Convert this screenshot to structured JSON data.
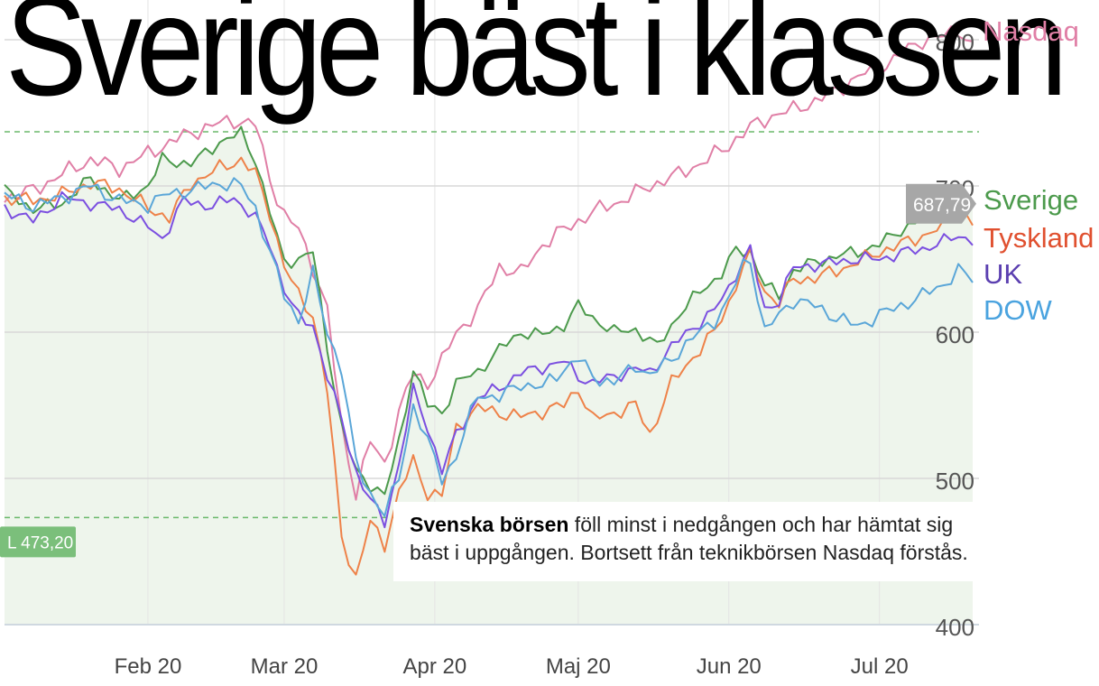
{
  "headline": "Sverige bäst i klassen",
  "caption": {
    "bold": "Svenska börsen",
    "text": " föll minst i nedgången och har hämtat sig bäst i uppgången. Bortsett från teknikbörsen Nasdaq förstås."
  },
  "chart_data": {
    "type": "line",
    "xlabel": "",
    "ylabel": "",
    "ylim": [
      400,
      830
    ],
    "y_ticks": [
      400,
      500,
      600,
      700,
      800
    ],
    "x_ticks": [
      {
        "label": "Feb 20",
        "at": 20
      },
      {
        "label": "Mar 20",
        "at": 39
      },
      {
        "label": "Apr 20",
        "at": 60
      },
      {
        "label": "Maj 20",
        "at": 80
      },
      {
        "label": "Jun 20",
        "at": 101
      },
      {
        "label": "Jul 20",
        "at": 122
      }
    ],
    "grid": true,
    "legend_placement": "right",
    "high_line": {
      "value": 737
    },
    "low_line": {
      "value": 473.2,
      "label": "L 473,20"
    },
    "last_value_label": "687,79",
    "last_value": 687.79,
    "series": [
      {
        "name": "Nasdaq",
        "color": "#e07fa6",
        "anchors": [
          [
            0,
            692
          ],
          [
            4,
            697
          ],
          [
            8,
            708
          ],
          [
            12,
            718
          ],
          [
            16,
            712
          ],
          [
            20,
            722
          ],
          [
            24,
            732
          ],
          [
            28,
            740
          ],
          [
            32,
            745
          ],
          [
            35,
            742
          ],
          [
            37,
            705
          ],
          [
            39,
            680
          ],
          [
            41,
            670
          ],
          [
            43,
            645
          ],
          [
            45,
            615
          ],
          [
            47,
            535
          ],
          [
            49,
            490
          ],
          [
            51,
            525
          ],
          [
            53,
            510
          ],
          [
            55,
            545
          ],
          [
            57,
            572
          ],
          [
            59,
            565
          ],
          [
            61,
            580
          ],
          [
            63,
            600
          ],
          [
            66,
            615
          ],
          [
            69,
            645
          ],
          [
            72,
            640
          ],
          [
            75,
            660
          ],
          [
            78,
            670
          ],
          [
            82,
            682
          ],
          [
            86,
            690
          ],
          [
            90,
            700
          ],
          [
            94,
            708
          ],
          [
            98,
            718
          ],
          [
            101,
            728
          ],
          [
            104,
            740
          ],
          [
            107,
            748
          ],
          [
            110,
            752
          ],
          [
            113,
            758
          ],
          [
            116,
            765
          ],
          [
            119,
            775
          ],
          [
            122,
            780
          ],
          [
            125,
            790
          ],
          [
            128,
            800
          ],
          [
            131,
            802
          ],
          [
            133,
            808
          ],
          [
            135,
            795
          ]
        ],
        "amp": 4.5
      },
      {
        "name": "Sverige",
        "color": "#4c9a4c",
        "anchors": [
          [
            0,
            697
          ],
          [
            4,
            684
          ],
          [
            8,
            688
          ],
          [
            12,
            705
          ],
          [
            16,
            690
          ],
          [
            20,
            700
          ],
          [
            22,
            718
          ],
          [
            26,
            715
          ],
          [
            30,
            730
          ],
          [
            33,
            736
          ],
          [
            35,
            718
          ],
          [
            37,
            682
          ],
          [
            39,
            648
          ],
          [
            41,
            650
          ],
          [
            43,
            655
          ],
          [
            45,
            590
          ],
          [
            47,
            535
          ],
          [
            49,
            505
          ],
          [
            51,
            496
          ],
          [
            53,
            488
          ],
          [
            55,
            525
          ],
          [
            57,
            575
          ],
          [
            59,
            550
          ],
          [
            61,
            545
          ],
          [
            63,
            565
          ],
          [
            66,
            573
          ],
          [
            69,
            588
          ],
          [
            72,
            600
          ],
          [
            75,
            598
          ],
          [
            78,
            605
          ],
          [
            80,
            618
          ],
          [
            82,
            610
          ],
          [
            85,
            600
          ],
          [
            88,
            602
          ],
          [
            91,
            590
          ],
          [
            94,
            612
          ],
          [
            97,
            628
          ],
          [
            100,
            640
          ],
          [
            102,
            656
          ],
          [
            104,
            655
          ],
          [
            106,
            632
          ],
          [
            108,
            625
          ],
          [
            110,
            642
          ],
          [
            113,
            648
          ],
          [
            116,
            652
          ],
          [
            119,
            655
          ],
          [
            122,
            660
          ],
          [
            125,
            670
          ],
          [
            128,
            678
          ],
          [
            131,
            684
          ],
          [
            133,
            693
          ],
          [
            135,
            688
          ]
        ],
        "amp": 3.5
      },
      {
        "name": "Tyskland",
        "color": "#ee8249",
        "anchors": [
          [
            0,
            692
          ],
          [
            4,
            690
          ],
          [
            8,
            694
          ],
          [
            12,
            702
          ],
          [
            16,
            698
          ],
          [
            20,
            685
          ],
          [
            23,
            678
          ],
          [
            26,
            702
          ],
          [
            30,
            712
          ],
          [
            33,
            718
          ],
          [
            35,
            708
          ],
          [
            37,
            682
          ],
          [
            39,
            645
          ],
          [
            41,
            625
          ],
          [
            43,
            612
          ],
          [
            45,
            560
          ],
          [
            47,
            460
          ],
          [
            49,
            432
          ],
          [
            51,
            470
          ],
          [
            53,
            455
          ],
          [
            55,
            490
          ],
          [
            57,
            512
          ],
          [
            59,
            490
          ],
          [
            61,
            488
          ],
          [
            63,
            535
          ],
          [
            66,
            548
          ],
          [
            69,
            545
          ],
          [
            72,
            542
          ],
          [
            75,
            546
          ],
          [
            78,
            550
          ],
          [
            80,
            562
          ],
          [
            82,
            540
          ],
          [
            85,
            545
          ],
          [
            88,
            550
          ],
          [
            90,
            530
          ],
          [
            93,
            565
          ],
          [
            96,
            583
          ],
          [
            99,
            600
          ],
          [
            101,
            620
          ],
          [
            103,
            645
          ],
          [
            104,
            652
          ],
          [
            106,
            628
          ],
          [
            108,
            620
          ],
          [
            110,
            636
          ],
          [
            113,
            637
          ],
          [
            116,
            642
          ],
          [
            119,
            648
          ],
          [
            122,
            655
          ],
          [
            125,
            660
          ],
          [
            128,
            666
          ],
          [
            131,
            672
          ],
          [
            133,
            684
          ],
          [
            135,
            675
          ]
        ],
        "amp": 4
      },
      {
        "name": "UK",
        "color": "#7b4fe0",
        "anchors": [
          [
            0,
            685
          ],
          [
            4,
            676
          ],
          [
            8,
            692
          ],
          [
            12,
            688
          ],
          [
            16,
            684
          ],
          [
            20,
            672
          ],
          [
            22,
            664
          ],
          [
            25,
            690
          ],
          [
            29,
            686
          ],
          [
            32,
            692
          ],
          [
            35,
            678
          ],
          [
            37,
            660
          ],
          [
            39,
            630
          ],
          [
            41,
            610
          ],
          [
            43,
            605
          ],
          [
            45,
            570
          ],
          [
            47,
            540
          ],
          [
            49,
            505
          ],
          [
            51,
            485
          ],
          [
            53,
            470
          ],
          [
            55,
            510
          ],
          [
            57,
            560
          ],
          [
            59,
            535
          ],
          [
            61,
            505
          ],
          [
            63,
            530
          ],
          [
            66,
            555
          ],
          [
            69,
            562
          ],
          [
            72,
            572
          ],
          [
            75,
            576
          ],
          [
            78,
            580
          ],
          [
            80,
            570
          ],
          [
            82,
            565
          ],
          [
            85,
            570
          ],
          [
            88,
            575
          ],
          [
            90,
            572
          ],
          [
            93,
            590
          ],
          [
            96,
            603
          ],
          [
            99,
            615
          ],
          [
            101,
            630
          ],
          [
            103,
            650
          ],
          [
            104,
            656
          ],
          [
            106,
            615
          ],
          [
            108,
            622
          ],
          [
            110,
            644
          ],
          [
            113,
            646
          ],
          [
            116,
            648
          ],
          [
            119,
            650
          ],
          [
            122,
            650
          ],
          [
            125,
            654
          ],
          [
            128,
            657
          ],
          [
            131,
            662
          ],
          [
            133,
            666
          ],
          [
            135,
            663
          ]
        ],
        "amp": 3.5
      },
      {
        "name": "DOW",
        "color": "#5aa6d8",
        "anchors": [
          [
            0,
            694
          ],
          [
            4,
            686
          ],
          [
            8,
            692
          ],
          [
            12,
            700
          ],
          [
            16,
            690
          ],
          [
            20,
            687
          ],
          [
            23,
            695
          ],
          [
            26,
            697
          ],
          [
            30,
            702
          ],
          [
            33,
            700
          ],
          [
            35,
            685
          ],
          [
            37,
            655
          ],
          [
            39,
            625
          ],
          [
            41,
            608
          ],
          [
            43,
            640
          ],
          [
            45,
            600
          ],
          [
            47,
            575
          ],
          [
            49,
            510
          ],
          [
            51,
            490
          ],
          [
            53,
            476
          ],
          [
            55,
            500
          ],
          [
            57,
            550
          ],
          [
            59,
            525
          ],
          [
            61,
            500
          ],
          [
            63,
            515
          ],
          [
            66,
            558
          ],
          [
            69,
            555
          ],
          [
            72,
            565
          ],
          [
            75,
            562
          ],
          [
            78,
            575
          ],
          [
            80,
            582
          ],
          [
            82,
            570
          ],
          [
            85,
            565
          ],
          [
            88,
            578
          ],
          [
            90,
            570
          ],
          [
            93,
            582
          ],
          [
            96,
            596
          ],
          [
            99,
            608
          ],
          [
            101,
            622
          ],
          [
            103,
            646
          ],
          [
            104,
            650
          ],
          [
            106,
            600
          ],
          [
            108,
            612
          ],
          [
            110,
            622
          ],
          [
            113,
            618
          ],
          [
            116,
            610
          ],
          [
            119,
            604
          ],
          [
            122,
            612
          ],
          [
            125,
            618
          ],
          [
            128,
            625
          ],
          [
            131,
            633
          ],
          [
            133,
            642
          ],
          [
            135,
            636
          ]
        ],
        "amp": 4
      }
    ]
  },
  "legend": [
    {
      "name": "Nasdaq",
      "color": "#e07fa6"
    },
    {
      "name": "Sverige",
      "color": "#4c9a4c"
    },
    {
      "name": "Tyskland",
      "color": "#e0502f"
    },
    {
      "name": "UK",
      "color": "#5b3fb0"
    },
    {
      "name": "DOW",
      "color": "#4aa3df"
    }
  ]
}
